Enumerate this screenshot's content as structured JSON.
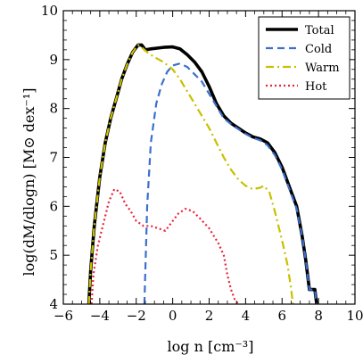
{
  "chart_data": {
    "type": "line",
    "title": "",
    "xlabel": "log n [cm⁻³]",
    "ylabel": "log(dM/dlogn) [M⊙ dex⁻¹]",
    "xlim": [
      -6,
      10
    ],
    "ylim": [
      4,
      10
    ],
    "xticks": [
      -6,
      -4,
      -2,
      0,
      2,
      4,
      6,
      8,
      10
    ],
    "yticks": [
      4,
      5,
      6,
      7,
      8,
      9,
      10
    ],
    "xtick_labels": [
      "−6",
      "−4",
      "−2",
      "0",
      "2",
      "4",
      "6",
      "8",
      "10"
    ],
    "ytick_labels": [
      "4",
      "5",
      "6",
      "7",
      "8",
      "9",
      "10"
    ],
    "grid": false,
    "legend_position": "top-right",
    "series": [
      {
        "name": "Total",
        "color": "#000000",
        "style": "solid",
        "points": [
          [
            -4.6,
            4.0
          ],
          [
            -4.5,
            4.7
          ],
          [
            -4.3,
            5.6
          ],
          [
            -4.0,
            6.6
          ],
          [
            -3.7,
            7.3
          ],
          [
            -3.4,
            7.8
          ],
          [
            -3.1,
            8.2
          ],
          [
            -2.8,
            8.6
          ],
          [
            -2.5,
            8.9
          ],
          [
            -2.2,
            9.15
          ],
          [
            -1.9,
            9.3
          ],
          [
            -1.7,
            9.3
          ],
          [
            -1.5,
            9.2
          ],
          [
            -1.2,
            9.22
          ],
          [
            -0.5,
            9.25
          ],
          [
            0.0,
            9.26
          ],
          [
            0.4,
            9.22
          ],
          [
            0.8,
            9.1
          ],
          [
            1.2,
            8.95
          ],
          [
            1.6,
            8.75
          ],
          [
            2.0,
            8.45
          ],
          [
            2.4,
            8.1
          ],
          [
            2.8,
            7.85
          ],
          [
            3.2,
            7.7
          ],
          [
            3.6,
            7.6
          ],
          [
            4.0,
            7.5
          ],
          [
            4.4,
            7.42
          ],
          [
            4.8,
            7.38
          ],
          [
            5.2,
            7.3
          ],
          [
            5.6,
            7.1
          ],
          [
            6.0,
            6.8
          ],
          [
            6.4,
            6.4
          ],
          [
            6.8,
            6.0
          ],
          [
            7.1,
            5.4
          ],
          [
            7.3,
            4.9
          ],
          [
            7.5,
            4.3
          ],
          [
            7.8,
            4.3
          ],
          [
            7.9,
            4.0
          ]
        ]
      },
      {
        "name": "Cold",
        "color": "#3b6fcf",
        "style": "dashed",
        "points": [
          [
            -1.55,
            4.0
          ],
          [
            -1.4,
            6.0
          ],
          [
            -1.2,
            7.3
          ],
          [
            -0.9,
            8.1
          ],
          [
            -0.6,
            8.5
          ],
          [
            -0.3,
            8.75
          ],
          [
            0.0,
            8.88
          ],
          [
            0.4,
            8.92
          ],
          [
            0.8,
            8.85
          ],
          [
            1.2,
            8.7
          ],
          [
            1.6,
            8.55
          ],
          [
            2.0,
            8.3
          ],
          [
            2.4,
            8.05
          ],
          [
            2.8,
            7.8
          ],
          [
            3.2,
            7.68
          ],
          [
            3.6,
            7.58
          ],
          [
            4.0,
            7.48
          ],
          [
            4.4,
            7.4
          ],
          [
            4.8,
            7.35
          ],
          [
            5.2,
            7.25
          ],
          [
            5.6,
            7.05
          ],
          [
            6.0,
            6.75
          ],
          [
            6.4,
            6.35
          ],
          [
            6.8,
            5.95
          ],
          [
            7.1,
            5.4
          ],
          [
            7.3,
            4.9
          ],
          [
            7.5,
            4.3
          ],
          [
            7.8,
            4.3
          ],
          [
            7.9,
            4.0
          ]
        ]
      },
      {
        "name": "Warm",
        "color": "#c9c000",
        "style": "dashdot",
        "points": [
          [
            -4.6,
            4.0
          ],
          [
            -4.5,
            4.7
          ],
          [
            -4.3,
            5.6
          ],
          [
            -4.0,
            6.6
          ],
          [
            -3.7,
            7.3
          ],
          [
            -3.4,
            7.8
          ],
          [
            -3.1,
            8.2
          ],
          [
            -2.8,
            8.6
          ],
          [
            -2.5,
            8.9
          ],
          [
            -2.2,
            9.15
          ],
          [
            -1.9,
            9.3
          ],
          [
            -1.7,
            9.25
          ],
          [
            -1.4,
            9.15
          ],
          [
            -1.0,
            9.05
          ],
          [
            -0.5,
            8.95
          ],
          [
            0.0,
            8.8
          ],
          [
            0.4,
            8.6
          ],
          [
            0.8,
            8.35
          ],
          [
            1.2,
            8.1
          ],
          [
            1.6,
            7.85
          ],
          [
            2.0,
            7.6
          ],
          [
            2.4,
            7.3
          ],
          [
            2.8,
            7.0
          ],
          [
            3.2,
            6.75
          ],
          [
            3.6,
            6.55
          ],
          [
            4.0,
            6.42
          ],
          [
            4.4,
            6.35
          ],
          [
            4.8,
            6.38
          ],
          [
            5.0,
            6.42
          ],
          [
            5.3,
            6.3
          ],
          [
            5.6,
            5.9
          ],
          [
            6.0,
            5.3
          ],
          [
            6.3,
            4.8
          ],
          [
            6.5,
            4.3
          ],
          [
            6.6,
            4.0
          ]
        ]
      },
      {
        "name": "Hot",
        "color": "#e8233a",
        "style": "dotted",
        "points": [
          [
            -4.45,
            4.0
          ],
          [
            -4.35,
            4.6
          ],
          [
            -4.1,
            5.2
          ],
          [
            -3.9,
            5.5
          ],
          [
            -3.7,
            5.8
          ],
          [
            -3.5,
            6.1
          ],
          [
            -3.2,
            6.35
          ],
          [
            -2.9,
            6.3
          ],
          [
            -2.6,
            6.05
          ],
          [
            -2.3,
            5.9
          ],
          [
            -2.0,
            5.7
          ],
          [
            -1.6,
            5.6
          ],
          [
            -1.2,
            5.6
          ],
          [
            -0.8,
            5.55
          ],
          [
            -0.4,
            5.5
          ],
          [
            -0.1,
            5.65
          ],
          [
            0.3,
            5.85
          ],
          [
            0.7,
            5.95
          ],
          [
            1.1,
            5.9
          ],
          [
            1.5,
            5.75
          ],
          [
            2.0,
            5.55
          ],
          [
            2.5,
            5.25
          ],
          [
            2.8,
            5.0
          ],
          [
            3.0,
            4.6
          ],
          [
            3.2,
            4.3
          ],
          [
            3.4,
            4.1
          ],
          [
            3.6,
            4.0
          ]
        ]
      }
    ]
  }
}
